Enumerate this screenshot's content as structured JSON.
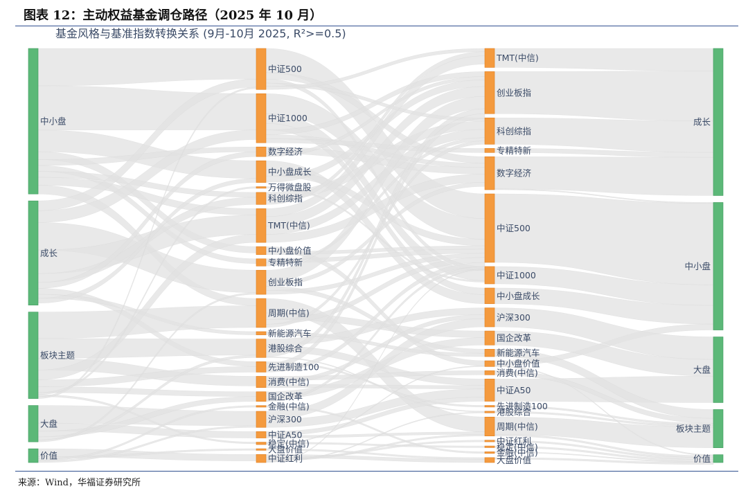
{
  "figure": {
    "title": "图表 12：主动权益基金调仓路径（2025 年 10 月）",
    "source": "来源：Wind，华福证券研究所"
  },
  "chart_data": {
    "type": "sankey",
    "title": "基金风格与基准指数转换关系 (9月-10月 2025, R²>=0.5)",
    "colors": {
      "style": "#5cb878",
      "index": "#f49a3e",
      "link": "#e2e2e2",
      "text": "#3a4a66"
    },
    "columns": [
      {
        "name": "col1",
        "kind": "style",
        "nodes": [
          {
            "label": "中小盘",
            "value": 148
          },
          {
            "label": "成长",
            "value": 106
          },
          {
            "label": "板块主题",
            "value": 88
          },
          {
            "label": "大盘",
            "value": 37
          },
          {
            "label": "价值",
            "value": 14
          }
        ]
      },
      {
        "name": "col2",
        "kind": "index",
        "nodes": [
          {
            "label": "中证500",
            "value": 51
          },
          {
            "label": "中证1000",
            "value": 61
          },
          {
            "label": "数字经济",
            "value": 12
          },
          {
            "label": "中小盘成长",
            "value": 27
          },
          {
            "label": "万得微盘股",
            "value": 2
          },
          {
            "label": "科创综指",
            "value": 15
          },
          {
            "label": "TMT(中信)",
            "value": 42
          },
          {
            "label": "中小盘价值",
            "value": 10
          },
          {
            "label": "专精特新",
            "value": 9
          },
          {
            "label": "创业板指",
            "value": 30
          },
          {
            "label": "周期(中信)",
            "value": 36
          },
          {
            "label": "新能源汽车",
            "value": 4
          },
          {
            "label": "港股综合",
            "value": 23
          },
          {
            "label": "先进制造100",
            "value": 13
          },
          {
            "label": "消费(中信)",
            "value": 14
          },
          {
            "label": "国企改革",
            "value": 12
          },
          {
            "label": "金融(中信)",
            "value": 2
          },
          {
            "label": "沪深300",
            "value": 20
          },
          {
            "label": "中证A50",
            "value": 8
          },
          {
            "label": "稳定(中信)",
            "value": 3
          },
          {
            "label": "大盘价值",
            "value": 2
          },
          {
            "label": "中证红利",
            "value": 10
          }
        ]
      },
      {
        "name": "col3",
        "kind": "index",
        "nodes": [
          {
            "label": "TMT(中信)",
            "value": 23
          },
          {
            "label": "创业板指",
            "value": 51
          },
          {
            "label": "科创综指",
            "value": 32
          },
          {
            "label": "专精特新",
            "value": 5
          },
          {
            "label": "数字经济",
            "value": 40
          },
          {
            "label": "中证500",
            "value": 83
          },
          {
            "label": "中证1000",
            "value": 21
          },
          {
            "label": "中小盘成长",
            "value": 19
          },
          {
            "label": "沪深300",
            "value": 23
          },
          {
            "label": "国企改革",
            "value": 17
          },
          {
            "label": "新能源汽车",
            "value": 9
          },
          {
            "label": "中小盘价值",
            "value": 7
          },
          {
            "label": "消费(中信)",
            "value": 5
          },
          {
            "label": "中证A50",
            "value": 27
          },
          {
            "label": "先进制造100",
            "value": 2
          },
          {
            "label": "港股综合",
            "value": 2
          },
          {
            "label": "周期(中信)",
            "value": 23
          },
          {
            "label": "中证红利",
            "value": 2
          },
          {
            "label": "稳定(中信)",
            "value": 2
          },
          {
            "label": "金融(中信)",
            "value": 2
          },
          {
            "label": "大盘价值",
            "value": 6
          }
        ]
      },
      {
        "name": "col4",
        "kind": "style",
        "nodes": [
          {
            "label": "成长",
            "value": 150
          },
          {
            "label": "中小盘",
            "value": 130
          },
          {
            "label": "大盘",
            "value": 67
          },
          {
            "label": "板块主题",
            "value": 39
          },
          {
            "label": "价值",
            "value": 8
          }
        ]
      }
    ],
    "links": [
      {
        "from": "col1.中小盘",
        "to": "col2.中证500",
        "value": 38
      },
      {
        "from": "col1.中小盘",
        "to": "col2.中证1000",
        "value": 45
      },
      {
        "from": "col1.中小盘",
        "to": "col2.中小盘成长",
        "value": 22
      },
      {
        "from": "col1.中小盘",
        "to": "col2.中小盘价值",
        "value": 8
      },
      {
        "from": "col1.中小盘",
        "to": "col2.数字经济",
        "value": 6
      },
      {
        "from": "col1.中小盘",
        "to": "col2.专精特新",
        "value": 6
      },
      {
        "from": "col1.中小盘",
        "to": "col2.科创综指",
        "value": 6
      },
      {
        "from": "col1.中小盘",
        "to": "col2.TMT(中信)",
        "value": 8
      },
      {
        "from": "col1.中小盘",
        "to": "col2.周期(中信)",
        "value": 9
      },
      {
        "from": "col1.成长",
        "to": "col2.中证500",
        "value": 10
      },
      {
        "from": "col1.成长",
        "to": "col2.中证1000",
        "value": 12
      },
      {
        "from": "col1.成长",
        "to": "col2.创业板指",
        "value": 28
      },
      {
        "from": "col1.成长",
        "to": "col2.TMT(中信)",
        "value": 24
      },
      {
        "from": "col1.成长",
        "to": "col2.科创综指",
        "value": 9
      },
      {
        "from": "col1.成长",
        "to": "col2.数字经济",
        "value": 6
      },
      {
        "from": "col1.成长",
        "to": "col2.先进制造100",
        "value": 6
      },
      {
        "from": "col1.成长",
        "to": "col2.新能源汽车",
        "value": 4
      },
      {
        "from": "col1.成长",
        "to": "col2.中小盘成长",
        "value": 5
      },
      {
        "from": "col1.板块主题",
        "to": "col2.周期(中信)",
        "value": 27
      },
      {
        "from": "col1.板块主题",
        "to": "col2.港股综合",
        "value": 20
      },
      {
        "from": "col1.板块主题",
        "to": "col2.消费(中信)",
        "value": 12
      },
      {
        "from": "col1.板块主题",
        "to": "col2.TMT(中信)",
        "value": 10
      },
      {
        "from": "col1.板块主题",
        "to": "col2.先进制造100",
        "value": 7
      },
      {
        "from": "col1.板块主题",
        "to": "col2.国企改革",
        "value": 6
      },
      {
        "from": "col1.板块主题",
        "to": "col2.万得微盘股",
        "value": 2
      },
      {
        "from": "col1.板块主题",
        "to": "col2.稳定(中信)",
        "value": 2
      },
      {
        "from": "col1.板块主题",
        "to": "col2.中证500",
        "value": 2
      },
      {
        "from": "col1.大盘",
        "to": "col2.沪深300",
        "value": 18
      },
      {
        "from": "col1.大盘",
        "to": "col2.中证A50",
        "value": 8
      },
      {
        "from": "col1.大盘",
        "to": "col2.国企改革",
        "value": 6
      },
      {
        "from": "col1.大盘",
        "to": "col2.港股综合",
        "value": 3
      },
      {
        "from": "col1.大盘",
        "to": "col2.创业板指",
        "value": 2
      },
      {
        "from": "col1.价值",
        "to": "col2.中证红利",
        "value": 8
      },
      {
        "from": "col1.价值",
        "to": "col2.大盘价值",
        "value": 2
      },
      {
        "from": "col1.价值",
        "to": "col2.金融(中信)",
        "value": 2
      },
      {
        "from": "col1.价值",
        "to": "col2.沪深300",
        "value": 2
      },
      {
        "from": "col2.中证500",
        "to": "col3.中证500",
        "value": 30
      },
      {
        "from": "col2.中证500",
        "to": "col3.数字经济",
        "value": 8
      },
      {
        "from": "col2.中证500",
        "to": "col3.中证1000",
        "value": 5
      },
      {
        "from": "col2.中证500",
        "to": "col3.科创综指",
        "value": 4
      },
      {
        "from": "col2.中证500",
        "to": "col3.TMT(中信)",
        "value": 4
      },
      {
        "from": "col2.中证1000",
        "to": "col3.中证500",
        "value": 25
      },
      {
        "from": "col2.中证1000",
        "to": "col3.中证1000",
        "value": 12
      },
      {
        "from": "col2.中证1000",
        "to": "col3.中小盘成长",
        "value": 8
      },
      {
        "from": "col2.中证1000",
        "to": "col3.创业板指",
        "value": 6
      },
      {
        "from": "col2.中证1000",
        "to": "col3.数字经济",
        "value": 5
      },
      {
        "from": "col2.中证1000",
        "to": "col3.专精特新",
        "value": 5
      },
      {
        "from": "col2.数字经济",
        "to": "col3.数字经济",
        "value": 8
      },
      {
        "from": "col2.数字经济",
        "to": "col3.创业板指",
        "value": 4
      },
      {
        "from": "col2.中小盘成长",
        "to": "col3.中小盘成长",
        "value": 11
      },
      {
        "from": "col2.中小盘成长",
        "to": "col3.中证500",
        "value": 8
      },
      {
        "from": "col2.中小盘成长",
        "to": "col3.创业板指",
        "value": 8
      },
      {
        "from": "col2.万得微盘股",
        "to": "col3.中证1000",
        "value": 2
      },
      {
        "from": "col2.科创综指",
        "to": "col3.科创综指",
        "value": 10
      },
      {
        "from": "col2.科创综指",
        "to": "col3.TMT(中信)",
        "value": 5
      },
      {
        "from": "col2.TMT(中信)",
        "to": "col3.TMT(中信)",
        "value": 10
      },
      {
        "from": "col2.TMT(中信)",
        "to": "col3.创业板指",
        "value": 12
      },
      {
        "from": "col2.TMT(中信)",
        "to": "col3.科创综指",
        "value": 10
      },
      {
        "from": "col2.TMT(中信)",
        "to": "col3.数字经济",
        "value": 10
      },
      {
        "from": "col2.中小盘价值",
        "to": "col3.中小盘价值",
        "value": 6
      },
      {
        "from": "col2.中小盘价值",
        "to": "col3.中证500",
        "value": 4
      },
      {
        "from": "col2.专精特新",
        "to": "col3.中证500",
        "value": 5
      },
      {
        "from": "col2.专精特新",
        "to": "col3.科创综指",
        "value": 4
      },
      {
        "from": "col2.创业板指",
        "to": "col3.创业板指",
        "value": 15
      },
      {
        "from": "col2.创业板指",
        "to": "col3.数字经济",
        "value": 5
      },
      {
        "from": "col2.创业板指",
        "to": "col3.新能源汽车",
        "value": 5
      },
      {
        "from": "col2.创业板指",
        "to": "col3.中证500",
        "value": 5
      },
      {
        "from": "col2.周期(中信)",
        "to": "col3.周期(中信)",
        "value": 18
      },
      {
        "from": "col2.周期(中信)",
        "to": "col3.国企改革",
        "value": 8
      },
      {
        "from": "col2.周期(中信)",
        "to": "col3.中证500",
        "value": 6
      },
      {
        "from": "col2.周期(中信)",
        "to": "col3.科创综指",
        "value": 4
      },
      {
        "from": "col2.新能源汽车",
        "to": "col3.新能源汽车",
        "value": 4
      },
      {
        "from": "col2.港股综合",
        "to": "col3.沪深300",
        "value": 8
      },
      {
        "from": "col2.港股综合",
        "to": "col3.中证A50",
        "value": 8
      },
      {
        "from": "col2.港股综合",
        "to": "col3.创业板指",
        "value": 6
      },
      {
        "from": "col2.港股综合",
        "to": "col3.港股综合",
        "value": 1
      },
      {
        "from": "col2.先进制造100",
        "to": "col3.先进制造100",
        "value": 2
      },
      {
        "from": "col2.先进制造100",
        "to": "col3.创业板指",
        "value": 6
      },
      {
        "from": "col2.先进制造100",
        "to": "col3.中证500",
        "value": 5
      },
      {
        "from": "col2.消费(中信)",
        "to": "col3.消费(中信)",
        "value": 5
      },
      {
        "from": "col2.消费(中信)",
        "to": "col3.沪深300",
        "value": 5
      },
      {
        "from": "col2.消费(中信)",
        "to": "col3.中证A50",
        "value": 4
      },
      {
        "from": "col2.国企改革",
        "to": "col3.国企改革",
        "value": 9
      },
      {
        "from": "col2.国企改革",
        "to": "col3.中证500",
        "value": 3
      },
      {
        "from": "col2.金融(中信)",
        "to": "col3.金融(中信)",
        "value": 2
      },
      {
        "from": "col2.沪深300",
        "to": "col3.沪深300",
        "value": 10
      },
      {
        "from": "col2.沪深300",
        "to": "col3.中证A50",
        "value": 10
      },
      {
        "from": "col2.中证A50",
        "to": "col3.中证A50",
        "value": 5
      },
      {
        "from": "col2.中证A50",
        "to": "col3.周期(中信)",
        "value": 3
      },
      {
        "from": "col2.稳定(中信)",
        "to": "col3.稳定(中信)",
        "value": 2
      },
      {
        "from": "col2.稳定(中信)",
        "to": "col3.中小盘价值",
        "value": 1
      },
      {
        "from": "col2.大盘价值",
        "to": "col3.大盘价值",
        "value": 2
      },
      {
        "from": "col2.中证红利",
        "to": "col3.大盘价值",
        "value": 4
      },
      {
        "from": "col2.中证红利",
        "to": "col3.中证红利",
        "value": 2
      },
      {
        "from": "col2.中证红利",
        "to": "col3.周期(中信)",
        "value": 2
      },
      {
        "from": "col2.中证红利",
        "to": "col3.港股综合",
        "value": 1
      },
      {
        "from": "col2.中证红利",
        "to": "col3.中证500",
        "value": 1
      },
      {
        "from": "col3.TMT(中信)",
        "to": "col4.成长",
        "value": 23
      },
      {
        "from": "col3.创业板指",
        "to": "col4.成长",
        "value": 51
      },
      {
        "from": "col3.科创综指",
        "to": "col4.成长",
        "value": 32
      },
      {
        "from": "col3.专精特新",
        "to": "col4.成长",
        "value": 5
      },
      {
        "from": "col3.数字经济",
        "to": "col4.成长",
        "value": 39
      },
      {
        "from": "col3.数字经济",
        "to": "col4.中小盘",
        "value": 1
      },
      {
        "from": "col3.中证500",
        "to": "col4.中小盘",
        "value": 83
      },
      {
        "from": "col3.中证1000",
        "to": "col4.中小盘",
        "value": 21
      },
      {
        "from": "col3.中小盘成长",
        "to": "col4.中小盘",
        "value": 19
      },
      {
        "from": "col3.中小盘价值",
        "to": "col4.中小盘",
        "value": 6
      },
      {
        "from": "col3.中小盘价值",
        "to": "col4.价值",
        "value": 1
      },
      {
        "from": "col3.沪深300",
        "to": "col4.大盘",
        "value": 23
      },
      {
        "from": "col3.国企改革",
        "to": "col4.大盘",
        "value": 17
      },
      {
        "from": "col3.中证A50",
        "to": "col4.大盘",
        "value": 27
      },
      {
        "from": "col3.新能源汽车",
        "to": "col4.板块主题",
        "value": 9
      },
      {
        "from": "col3.消费(中信)",
        "to": "col4.板块主题",
        "value": 5
      },
      {
        "from": "col3.先进制造100",
        "to": "col4.板块主题",
        "value": 2
      },
      {
        "from": "col3.港股综合",
        "to": "col4.板块主题",
        "value": 2
      },
      {
        "from": "col3.周期(中信)",
        "to": "col4.板块主题",
        "value": 21
      },
      {
        "from": "col3.周期(中信)",
        "to": "col4.价值",
        "value": 2
      },
      {
        "from": "col3.中证红利",
        "to": "col4.价值",
        "value": 2
      },
      {
        "from": "col3.稳定(中信)",
        "to": "col4.价值",
        "value": 2
      },
      {
        "from": "col3.金融(中信)",
        "to": "col4.价值",
        "value": 1
      },
      {
        "from": "col3.金融(中信)",
        "to": "col4.中小盘",
        "value": 0
      },
      {
        "from": "col3.大盘价值",
        "to": "col4.价值",
        "value": 2
      },
      {
        "from": "col3.大盘价值",
        "to": "col4.中小盘",
        "value": 0
      }
    ]
  }
}
